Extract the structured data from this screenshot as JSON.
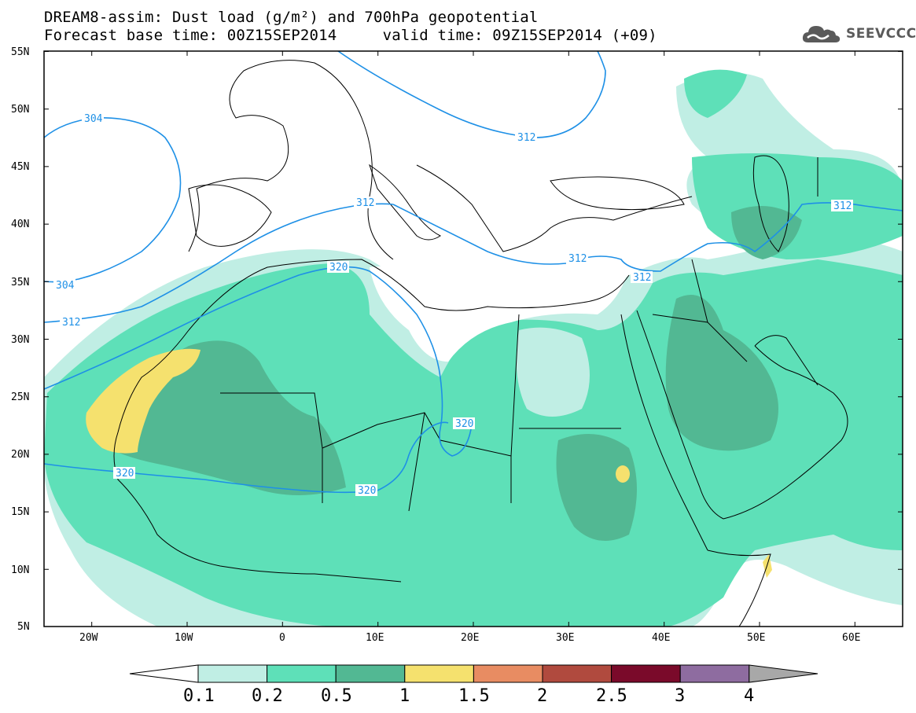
{
  "title": {
    "line1": "DREAM8-assim: Dust load (g/m²) and 700hPa geopotential",
    "line2": "Forecast base time: 00Z15SEP2014     valid time: 09Z15SEP2014 (+09)"
  },
  "logo": {
    "text": "SEEVCCC",
    "icon": "cloud-icon"
  },
  "axes": {
    "lat_labels": [
      "55N",
      "50N",
      "45N",
      "40N",
      "35N",
      "30N",
      "25N",
      "20N",
      "15N",
      "10N",
      "5N"
    ],
    "lon_labels": [
      "20W",
      "10W",
      "0",
      "10E",
      "20E",
      "30E",
      "40E",
      "50E",
      "60E"
    ],
    "lat_range": [
      5,
      55
    ],
    "lon_range": [
      -25,
      65
    ]
  },
  "contours": {
    "color": "#1e90e6",
    "labels": [
      "304",
      "304",
      "312",
      "312",
      "312",
      "312",
      "312",
      "312",
      "320",
      "320",
      "320",
      "320"
    ]
  },
  "colorbar": {
    "labels": [
      "0.1",
      "0.2",
      "0.5",
      "1",
      "1.5",
      "2",
      "2.5",
      "3",
      "4"
    ],
    "colors": [
      "#c0eee4",
      "#5ee0b8",
      "#52b893",
      "#f5e16e",
      "#e88c62",
      "#b04a3e",
      "#7a0a2a",
      "#8e6ca0",
      "#a8a8a8"
    ]
  }
}
